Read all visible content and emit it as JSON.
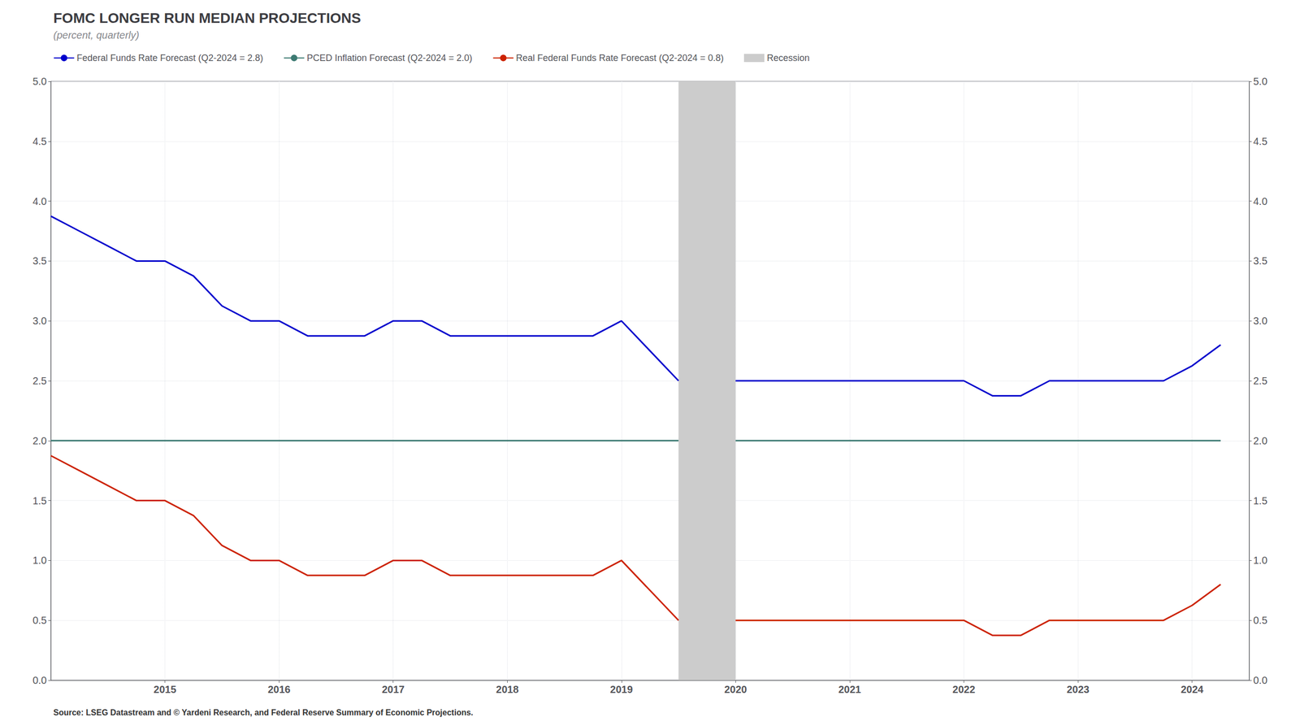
{
  "chart_data": {
    "type": "line",
    "title": "FOMC LONGER RUN MEDIAN PROJECTIONS",
    "subtitle": "(percent, quarterly)",
    "source": "Source: LSEG Datastream and © Yardeni Research, and Federal Reserve Summary of Economic Projections.",
    "xlim": [
      2014.0,
      2024.5
    ],
    "xticks": [
      2015,
      2016,
      2017,
      2018,
      2019,
      2020,
      2021,
      2022,
      2023,
      2024
    ],
    "ylim": [
      0.0,
      5.0
    ],
    "yticks": [
      {
        "value": 0.0,
        "label": "0.0"
      },
      0.5,
      {
        "value": 1.0,
        "label": "1.0"
      },
      1.5,
      {
        "value": 2.0,
        "label": "2.0"
      },
      2.5,
      {
        "value": 3.0,
        "label": "3.0"
      },
      3.5,
      {
        "value": 4.0,
        "label": "4.0"
      },
      4.5,
      {
        "value": 5.0,
        "label": "5.0"
      }
    ],
    "y2lim": [
      0.0,
      5.0
    ],
    "y2ticks": [
      {
        "value": 0.0,
        "label": "0.0"
      },
      0.5,
      {
        "value": 1.0,
        "label": "1.0"
      },
      1.5,
      {
        "value": 2.0,
        "label": "2.0"
      },
      2.5,
      {
        "value": 3.0,
        "label": "3.0"
      },
      3.5,
      {
        "value": 4.0,
        "label": "4.0"
      },
      4.5,
      {
        "value": 5.0,
        "label": "5.0"
      }
    ],
    "grid": true,
    "legend": "upper left",
    "series": [
      {
        "name": "Federal Funds Rate Forecast (Q2-2024 = 2.8)",
        "color": "#0000cc",
        "x": [
          2014.0,
          2014.25,
          2014.5,
          2014.75,
          2015.0,
          2015.25,
          2015.5,
          2015.75,
          2016.0,
          2016.25,
          2016.5,
          2016.75,
          2017.0,
          2017.25,
          2017.5,
          2017.75,
          2018.0,
          2018.25,
          2018.5,
          2018.75,
          2019.0,
          2019.25,
          2019.5,
          2020.0,
          2020.25,
          2020.5,
          2020.75,
          2021.0,
          2021.25,
          2021.5,
          2021.75,
          2022.0,
          2022.25,
          2022.5,
          2022.75,
          2023.0,
          2023.25,
          2023.5,
          2023.75,
          2024.0,
          2024.25
        ],
        "values": [
          3.875,
          3.75,
          3.625,
          3.5,
          3.5,
          3.375,
          3.125,
          3.0,
          3.0,
          2.875,
          2.875,
          2.875,
          3.0,
          3.0,
          2.875,
          2.875,
          2.875,
          2.875,
          2.875,
          2.875,
          3.0,
          2.75,
          2.5,
          2.5,
          2.5,
          2.5,
          2.5,
          2.5,
          2.5,
          2.5,
          2.5,
          2.5,
          2.375,
          2.375,
          2.5,
          2.5,
          2.5,
          2.5,
          2.5,
          2.625,
          2.8
        ]
      },
      {
        "name": "PCED Inflation Forecast (Q2-2024 = 2.0)",
        "color": "#3d7a72",
        "x": [
          2014.0,
          2019.5,
          2020.0,
          2024.25
        ],
        "values": [
          2.0,
          2.0,
          2.0,
          2.0
        ]
      },
      {
        "name": "Real Federal Funds Rate Forecast (Q2-2024 = 0.8)",
        "color": "#cc2200",
        "x": [
          2014.0,
          2014.25,
          2014.5,
          2014.75,
          2015.0,
          2015.25,
          2015.5,
          2015.75,
          2016.0,
          2016.25,
          2016.5,
          2016.75,
          2017.0,
          2017.25,
          2017.5,
          2017.75,
          2018.0,
          2018.25,
          2018.5,
          2018.75,
          2019.0,
          2019.25,
          2019.5,
          2020.0,
          2020.25,
          2020.5,
          2020.75,
          2021.0,
          2021.25,
          2021.5,
          2021.75,
          2022.0,
          2022.25,
          2022.5,
          2022.75,
          2023.0,
          2023.25,
          2023.5,
          2023.75,
          2024.0,
          2024.25
        ],
        "values": [
          1.875,
          1.75,
          1.625,
          1.5,
          1.5,
          1.375,
          1.125,
          1.0,
          1.0,
          0.875,
          0.875,
          0.875,
          1.0,
          1.0,
          0.875,
          0.875,
          0.875,
          0.875,
          0.875,
          0.875,
          1.0,
          0.75,
          0.5,
          0.5,
          0.5,
          0.5,
          0.5,
          0.5,
          0.5,
          0.5,
          0.5,
          0.5,
          0.375,
          0.375,
          0.5,
          0.5,
          0.5,
          0.5,
          0.5,
          0.625,
          0.8
        ]
      }
    ],
    "recession": {
      "name": "Recession",
      "xmin": 2019.5,
      "xmax": 2020.0,
      "color": "#cccccc"
    }
  }
}
